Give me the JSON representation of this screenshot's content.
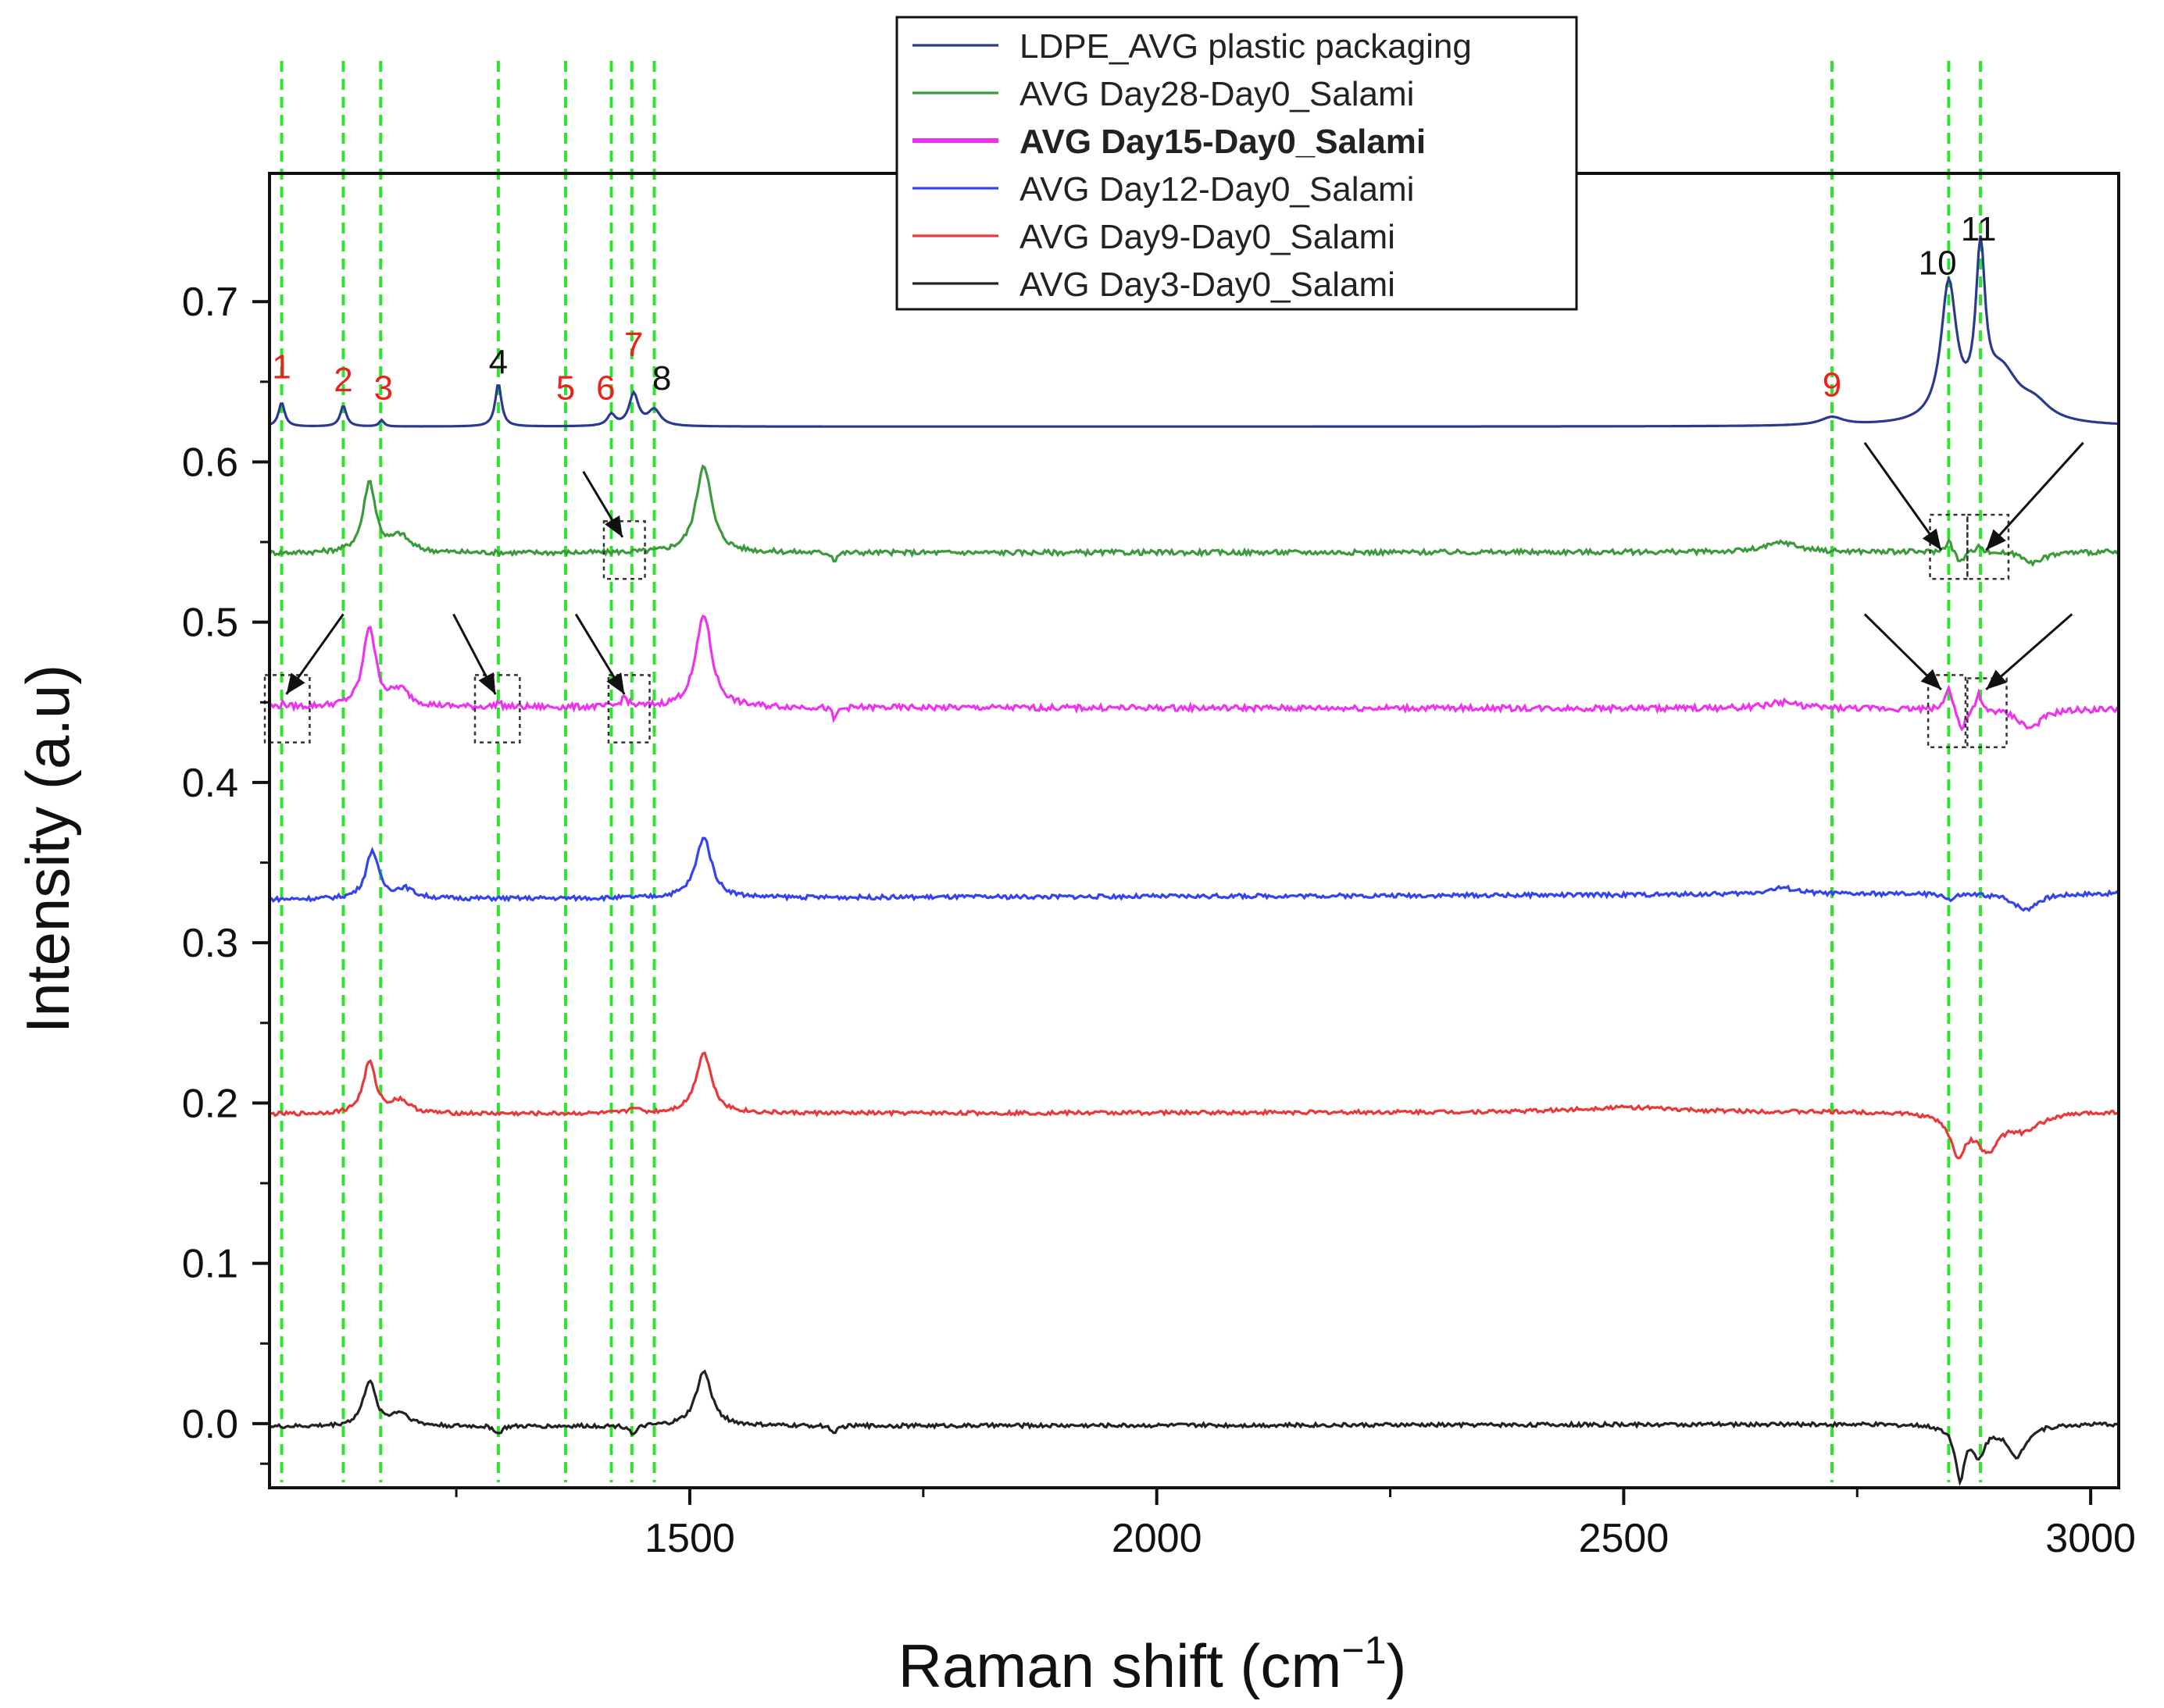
{
  "chart_data": {
    "type": "line",
    "title": "",
    "xlabel": "Raman shift (cm",
    "xlabel_sup": "−1",
    "xlabel_close": ")",
    "ylabel": "Intensity (a.u)",
    "xlim": [
      1050,
      3030
    ],
    "ylim": [
      -0.04,
      0.78
    ],
    "x_ticks": [
      1500,
      2000,
      2500,
      3000
    ],
    "x_tick_labels": [
      "1500",
      "2000",
      "2500",
      "3000"
    ],
    "y_ticks": [
      0.0,
      0.1,
      0.2,
      0.3,
      0.4,
      0.5,
      0.6,
      0.7
    ],
    "y_tick_labels": [
      "0.0",
      "0.1",
      "0.2",
      "0.3",
      "0.4",
      "0.5",
      "0.6",
      "0.7"
    ],
    "grid": false,
    "legend_position": "top-center",
    "legend": [
      {
        "label": "LDPE_AVG plastic packaging",
        "color": "#2b3a8f",
        "bold": false
      },
      {
        "label": "AVG Day28-Day0_Salami",
        "color": "#3b9a3b",
        "bold": false
      },
      {
        "label": "AVG Day15-Day0_Salami",
        "color": "#ee33ee",
        "bold": true
      },
      {
        "label": "AVG Day12-Day0_Salami",
        "color": "#3344ee",
        "bold": false
      },
      {
        "label": "AVG Day9-Day0_Salami",
        "color": "#e8393a",
        "bold": false
      },
      {
        "label": "AVG Day3-Day0_Salami",
        "color": "#222222",
        "bold": false
      }
    ],
    "reference_lines_x": [
      1063,
      1129,
      1169,
      1295,
      1367,
      1416,
      1438,
      1462,
      2723,
      2848,
      2882
    ],
    "reference_line_color": "#2ee52e",
    "peak_labels": [
      {
        "text": "1",
        "x": 1063,
        "y": 0.652,
        "color": "#e8221c"
      },
      {
        "text": "2",
        "x": 1129,
        "y": 0.644,
        "color": "#e8221c"
      },
      {
        "text": "3",
        "x": 1172,
        "y": 0.639,
        "color": "#e8221c"
      },
      {
        "text": "4",
        "x": 1295,
        "y": 0.655,
        "color": "#111111"
      },
      {
        "text": "5",
        "x": 1367,
        "y": 0.639,
        "color": "#e8221c"
      },
      {
        "text": "6",
        "x": 1410,
        "y": 0.639,
        "color": "#e8221c"
      },
      {
        "text": "7",
        "x": 1440,
        "y": 0.666,
        "color": "#e8221c"
      },
      {
        "text": "8",
        "x": 1470,
        "y": 0.645,
        "color": "#111111"
      },
      {
        "text": "9",
        "x": 2723,
        "y": 0.641,
        "color": "#e8221c"
      },
      {
        "text": "10",
        "x": 2836,
        "y": 0.717,
        "color": "#111111"
      },
      {
        "text": "11",
        "x": 2880,
        "y": 0.738,
        "color": "#111111"
      }
    ],
    "series": [
      {
        "name": "LDPE_AVG plastic packaging",
        "color": "#2b3a8f",
        "baseline": 0.622,
        "end_level": 0.622,
        "peaks": [
          {
            "x": 1063,
            "h": 0.015,
            "w": 4
          },
          {
            "x": 1129,
            "h": 0.013,
            "w": 4
          },
          {
            "x": 1170,
            "h": 0.004,
            "w": 3
          },
          {
            "x": 1295,
            "h": 0.027,
            "w": 4
          },
          {
            "x": 1416,
            "h": 0.007,
            "w": 5
          },
          {
            "x": 1440,
            "h": 0.02,
            "w": 6
          },
          {
            "x": 1462,
            "h": 0.01,
            "w": 8
          },
          {
            "x": 2723,
            "h": 0.005,
            "w": 15
          },
          {
            "x": 2848,
            "h": 0.085,
            "w": 10
          },
          {
            "x": 2882,
            "h": 0.097,
            "w": 6
          },
          {
            "x": 2905,
            "h": 0.03,
            "w": 22
          },
          {
            "x": 2940,
            "h": 0.01,
            "w": 20
          }
        ]
      },
      {
        "name": "AVG Day28-Day0_Salami",
        "color": "#3b9a3b",
        "baseline": 0.543,
        "end_level": 0.544,
        "noise": 0.0015,
        "peaks": [
          {
            "x": 1157,
            "h": 0.044,
            "w": 8
          },
          {
            "x": 1190,
            "h": 0.01,
            "w": 12
          },
          {
            "x": 1515,
            "h": 0.055,
            "w": 10
          },
          {
            "x": 1655,
            "h": -0.005,
            "w": 3
          },
          {
            "x": 2670,
            "h": 0.006,
            "w": 20
          },
          {
            "x": 2848,
            "h": 0.008,
            "w": 4
          },
          {
            "x": 2860,
            "h": -0.007,
            "w": 5
          },
          {
            "x": 2880,
            "h": 0.006,
            "w": 3
          },
          {
            "x": 2940,
            "h": -0.007,
            "w": 12
          }
        ]
      },
      {
        "name": "AVG Day15-Day0_Salami",
        "color": "#ee33ee",
        "baseline": 0.447,
        "end_level": 0.446,
        "noise": 0.0018,
        "peaks": [
          {
            "x": 1065,
            "h": 0.002,
            "w": 3
          },
          {
            "x": 1157,
            "h": 0.05,
            "w": 8
          },
          {
            "x": 1190,
            "h": 0.01,
            "w": 12
          },
          {
            "x": 1295,
            "h": 0.003,
            "w": 3
          },
          {
            "x": 1430,
            "h": 0.006,
            "w": 4
          },
          {
            "x": 1515,
            "h": 0.058,
            "w": 10
          },
          {
            "x": 1655,
            "h": -0.008,
            "w": 3
          },
          {
            "x": 2670,
            "h": 0.004,
            "w": 20
          },
          {
            "x": 2848,
            "h": 0.016,
            "w": 4
          },
          {
            "x": 2862,
            "h": -0.014,
            "w": 5
          },
          {
            "x": 2880,
            "h": 0.01,
            "w": 3
          },
          {
            "x": 2935,
            "h": -0.012,
            "w": 15
          }
        ]
      },
      {
        "name": "AVG Day12-Day0_Salami",
        "color": "#3344ee",
        "baseline": 0.327,
        "end_level": 0.331,
        "noise": 0.0013,
        "peaks": [
          {
            "x": 1160,
            "h": 0.03,
            "w": 8
          },
          {
            "x": 1195,
            "h": 0.006,
            "w": 12
          },
          {
            "x": 1515,
            "h": 0.038,
            "w": 10
          },
          {
            "x": 2670,
            "h": 0.004,
            "w": 20
          },
          {
            "x": 2850,
            "h": -0.004,
            "w": 5
          },
          {
            "x": 2930,
            "h": -0.01,
            "w": 15
          }
        ]
      },
      {
        "name": "AVG Day9-Day0_Salami",
        "color": "#e8393a",
        "baseline": 0.193,
        "end_level": 0.195,
        "noise": 0.0012,
        "peaks": [
          {
            "x": 1157,
            "h": 0.032,
            "w": 8
          },
          {
            "x": 1190,
            "h": 0.008,
            "w": 12
          },
          {
            "x": 1440,
            "h": 0.004,
            "w": 5
          },
          {
            "x": 1515,
            "h": 0.038,
            "w": 10
          },
          {
            "x": 2500,
            "h": 0.003,
            "w": 60
          },
          {
            "x": 2858,
            "h": -0.024,
            "w": 10
          },
          {
            "x": 2890,
            "h": -0.022,
            "w": 15
          },
          {
            "x": 2930,
            "h": -0.01,
            "w": 20
          }
        ]
      },
      {
        "name": "AVG Day3-Day0_Salami",
        "color": "#222222",
        "baseline": -0.002,
        "end_level": 0.0,
        "noise": 0.0012,
        "peaks": [
          {
            "x": 1157,
            "h": 0.028,
            "w": 8
          },
          {
            "x": 1190,
            "h": 0.008,
            "w": 12
          },
          {
            "x": 1295,
            "h": -0.005,
            "w": 4
          },
          {
            "x": 1440,
            "h": -0.006,
            "w": 4
          },
          {
            "x": 1515,
            "h": 0.034,
            "w": 10
          },
          {
            "x": 1655,
            "h": -0.006,
            "w": 3
          },
          {
            "x": 2860,
            "h": -0.032,
            "w": 6
          },
          {
            "x": 2880,
            "h": -0.018,
            "w": 8
          },
          {
            "x": 2920,
            "h": -0.02,
            "w": 12
          }
        ]
      }
    ],
    "highlight_boxes": [
      {
        "x0": 1408,
        "x1": 1452,
        "y0": 0.527,
        "y1": 0.563
      },
      {
        "x0": 2828,
        "x1": 2868,
        "y0": 0.527,
        "y1": 0.567
      },
      {
        "x0": 2868,
        "x1": 2912,
        "y0": 0.527,
        "y1": 0.567
      },
      {
        "x0": 1045,
        "x1": 1093,
        "y0": 0.425,
        "y1": 0.467
      },
      {
        "x0": 1270,
        "x1": 1318,
        "y0": 0.425,
        "y1": 0.467
      },
      {
        "x0": 1413,
        "x1": 1457,
        "y0": 0.425,
        "y1": 0.467
      },
      {
        "x0": 2826,
        "x1": 2866,
        "y0": 0.422,
        "y1": 0.467
      },
      {
        "x0": 2868,
        "x1": 2910,
        "y0": 0.422,
        "y1": 0.465
      }
    ],
    "arrows": [
      {
        "from": [
          1386,
          0.594
        ],
        "to": [
          1428,
          0.553
        ]
      },
      {
        "from": [
          2758,
          0.612
        ],
        "to": [
          2840,
          0.545
        ]
      },
      {
        "from": [
          2992,
          0.612
        ],
        "to": [
          2888,
          0.545
        ]
      },
      {
        "from": [
          1129,
          0.505
        ],
        "to": [
          1068,
          0.455
        ]
      },
      {
        "from": [
          1247,
          0.505
        ],
        "to": [
          1292,
          0.455
        ]
      },
      {
        "from": [
          1378,
          0.505
        ],
        "to": [
          1430,
          0.455
        ]
      },
      {
        "from": [
          2758,
          0.505
        ],
        "to": [
          2840,
          0.458
        ]
      },
      {
        "from": [
          2980,
          0.505
        ],
        "to": [
          2888,
          0.458
        ]
      }
    ]
  }
}
